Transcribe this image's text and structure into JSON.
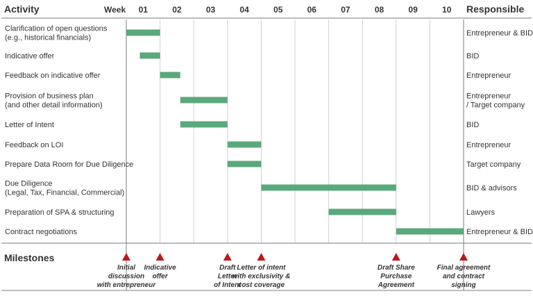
{
  "chart_data": {
    "type": "gantt",
    "headers": {
      "activity": "Activity",
      "week": "Week",
      "responsible": "Responsible",
      "milestones": "Milestones"
    },
    "weeks": [
      "01",
      "02",
      "03",
      "04",
      "05",
      "06",
      "07",
      "08",
      "09",
      "10"
    ],
    "bar_color": "#5aa97a",
    "milestone_color": "#c0161a",
    "tasks": [
      {
        "lines": [
          "Clarification of open questions",
          "(e.g., historical financials)"
        ],
        "start": 0,
        "end": 1,
        "responsible": [
          "Entrepreneur & BID"
        ]
      },
      {
        "lines": [
          "Indicative offer"
        ],
        "start": 0.4,
        "end": 1,
        "responsible": [
          "BID"
        ]
      },
      {
        "lines": [
          "Feedback on indicative offer"
        ],
        "start": 1,
        "end": 1.6,
        "responsible": [
          "Entrepreneur"
        ]
      },
      {
        "lines": [
          "Provision of business plan",
          "(and other detail information)"
        ],
        "start": 1.6,
        "end": 3,
        "responsible": [
          "Entrepreneur",
          "/ Target company"
        ]
      },
      {
        "lines": [
          "Letter of Intent"
        ],
        "start": 1.6,
        "end": 3,
        "responsible": [
          "BID"
        ]
      },
      {
        "lines": [
          "Feedback on LOI"
        ],
        "start": 3,
        "end": 4,
        "responsible": [
          "Entrepreneur"
        ]
      },
      {
        "lines": [
          "Prepare Data Room for Due Diligence"
        ],
        "start": 3,
        "end": 4,
        "responsible": [
          "Target company"
        ]
      },
      {
        "lines": [
          "Due Diligence",
          "(Legal, Tax, Financial, Commercial)"
        ],
        "start": 4,
        "end": 8,
        "responsible": [
          "BID & advisors"
        ]
      },
      {
        "lines": [
          "Preparation of SPA & structuring"
        ],
        "start": 6,
        "end": 8,
        "responsible": [
          "Lawyers"
        ]
      },
      {
        "lines": [
          "Contract negotiations"
        ],
        "start": 8,
        "end": 10,
        "responsible": [
          "Entrepreneur & BID"
        ]
      }
    ],
    "milestones": [
      {
        "at": 0,
        "lines": [
          "Initial",
          "discussion",
          "with entrepreneur"
        ]
      },
      {
        "at": 1,
        "lines": [
          "Indicative",
          "offer"
        ]
      },
      {
        "at": 3,
        "lines": [
          "Draft",
          "Letter",
          "of Intent"
        ]
      },
      {
        "at": 4,
        "lines": [
          "Letter of intent",
          "with exclusivity &",
          "cost coverage"
        ]
      },
      {
        "at": 8,
        "lines": [
          "Draft Share",
          "Purchase",
          "Agreement"
        ]
      },
      {
        "at": 10,
        "lines": [
          "Final agreement",
          "and contract",
          "signing"
        ]
      }
    ]
  }
}
